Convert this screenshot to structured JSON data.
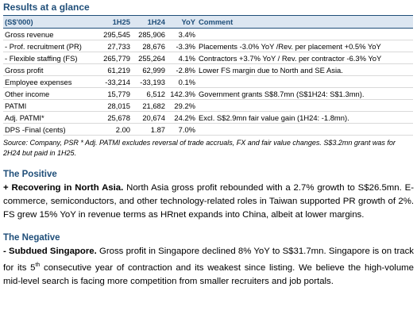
{
  "header": {
    "title": "Results at a glance"
  },
  "table": {
    "columns": [
      "(S$'000)",
      "1H25",
      "1H24",
      "YoY",
      "Comment"
    ],
    "rows": [
      [
        "Gross revenue",
        "295,545",
        "285,906",
        "3.4%"
      ],
      [
        "- Prof. recruitment (PR)",
        "27,733",
        "28,676",
        "-3.3%",
        "Placements -3.0% YoY /Rev. per placement +0.5% YoY"
      ],
      [
        "- Flexible staffing (FS)",
        "265,779",
        "255,264",
        "4.1%",
        "Contractors +3.7% YoY / Rev. per contractor -6.3% YoY"
      ],
      [
        "Gross profit",
        "61,219",
        "62,999",
        "-2.8%",
        "Lower FS margin due to North and SE Asia."
      ],
      [
        "Employee expenses",
        "-33,214",
        "-33,193",
        "0.1%"
      ],
      [
        "Other income",
        "15,779",
        "6,512",
        "142.3%",
        "Government grants S$8.7mn (S$1H24: S$1.3mn)."
      ],
      [
        "PATMI",
        "28,015",
        "21,682",
        "29.2%"
      ],
      [
        "Adj. PATMI*",
        "25,678",
        "20,674",
        "24.2%",
        "Excl. S$2.9mn fair value gain (1H24: -1.8mn)."
      ],
      [
        "DPS -Final (cents)",
        "2.00",
        "1.87",
        "7.0%"
      ]
    ],
    "source": "Source: Company, PSR * Adj. PATMI excludes reversal of trade accruals, FX and fair value changes. S$3.2mn grant was for 2H24 but paid in 1H25."
  },
  "positive": {
    "heading": "The Positive",
    "lead": "+ Recovering in North Asia.",
    "text": " North Asia gross profit rebounded with a 2.7% growth to S$26.5mn. E-commerce, semiconductors, and other technology-related roles in Taiwan supported PR growth of 2%. FS grew 15% YoY in revenue terms as HRnet expands into China, albeit at lower margins."
  },
  "negative": {
    "heading": "The Negative",
    "lead": "- Subdued Singapore.",
    "text_before": " Gross profit in Singapore declined 8% YoY to S$31.7mn. Singapore is on track for its 5",
    "superscript": "th",
    "text_after": " consecutive year of contraction and its weakest since listing. We believe the high-volume mid-level search is facing more competition from smaller recruiters and job portals."
  }
}
